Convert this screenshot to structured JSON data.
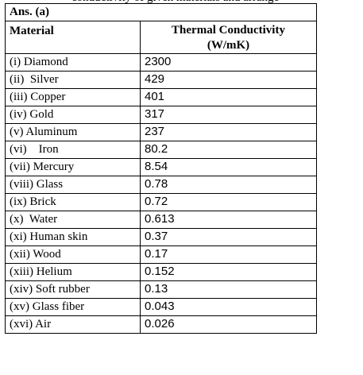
{
  "answer_label": "Ans. (a)",
  "headers": {
    "material": "Material",
    "conductivity_line1": "Thermal Conductivity",
    "conductivity_line2": "(W/mK)"
  },
  "rows": [
    {
      "material": "(i) Diamond",
      "value": "2300"
    },
    {
      "material": "(ii)  Silver",
      "value": "429"
    },
    {
      "material": "(iii) Copper",
      "value": "401"
    },
    {
      "material": "(iv) Gold",
      "value": "317"
    },
    {
      "material": "(v) Aluminum",
      "value": "237"
    },
    {
      "material": "(vi)    Iron",
      "value": "80.2"
    },
    {
      "material": "(vii) Mercury",
      "value": "8.54"
    },
    {
      "material": "(viii) Glass",
      "value": "0.78"
    },
    {
      "material": "(ix) Brick",
      "value": "0.72"
    },
    {
      "material": "(x)  Water",
      "value": "0.613"
    },
    {
      "material": "(xi) Human skin",
      "value": "0.37"
    },
    {
      "material": "(xii) Wood",
      "value": "0.17"
    },
    {
      "material": "(xiii) Helium",
      "value": "0.152"
    },
    {
      "material": "(xiv) Soft rubber",
      "value": "0.13"
    },
    {
      "material": "(xv) Glass fiber",
      "value": "0.043"
    },
    {
      "material": "(xvi) Air",
      "value": "0.026"
    }
  ]
}
